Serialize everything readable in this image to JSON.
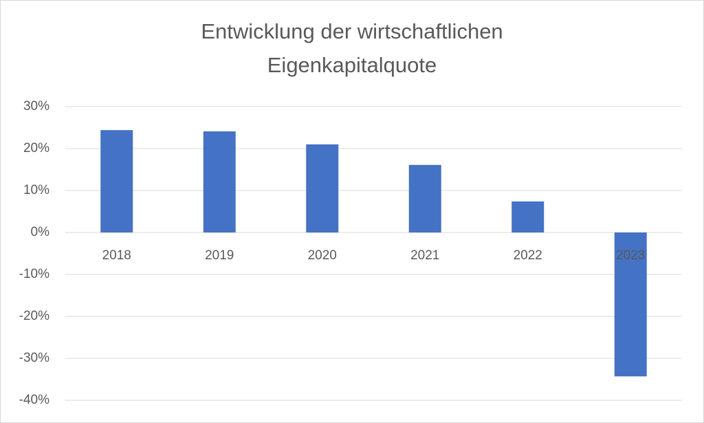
{
  "chart_data": {
    "type": "bar",
    "title": [
      "Entwicklung der wirtschaftlichen",
      "Eigenkapitalquote"
    ],
    "categories": [
      "2018",
      "2019",
      "2020",
      "2021",
      "2022",
      "2023"
    ],
    "values": [
      24.4,
      24.1,
      21.0,
      16.1,
      7.4,
      -34.3
    ],
    "color": "#4472c4",
    "ylim": [
      -40,
      30
    ],
    "yticks": [
      {
        "value": -40,
        "label": "-40%"
      },
      {
        "value": -30,
        "label": "-30%"
      },
      {
        "value": -20,
        "label": "-20%"
      },
      {
        "value": -10,
        "label": "-10%"
      },
      {
        "value": 0,
        "label": "0%"
      },
      {
        "value": 10,
        "label": "10%"
      },
      {
        "value": 20,
        "label": "20%"
      },
      {
        "value": 30,
        "label": "30%"
      }
    ],
    "grid": true
  }
}
